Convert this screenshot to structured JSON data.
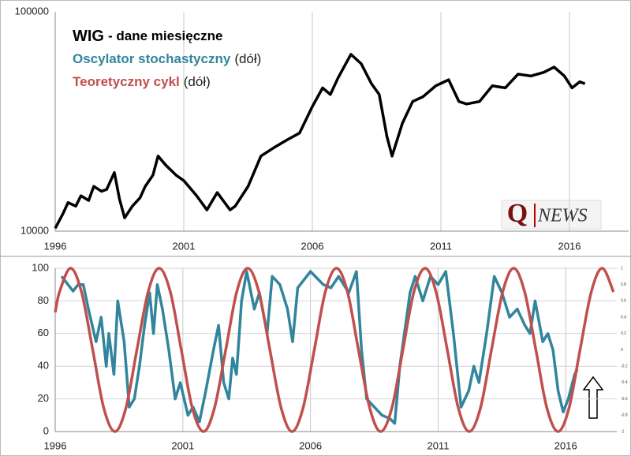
{
  "chart_data": [
    {
      "type": "line",
      "log_y": true,
      "grid_x": true,
      "grid_y": false,
      "xlim": [
        1996,
        2018.3
      ],
      "xticks": [
        1996,
        2001,
        2006,
        2011,
        2016
      ],
      "ylim": [
        10000,
        100000
      ],
      "yticks": [
        10000,
        100000
      ],
      "series": [
        {
          "name": "WIG",
          "note": "- dane miesięczne",
          "color": "#000000",
          "x": [
            1996.0,
            1996.3,
            1996.5,
            1996.8,
            1997.0,
            1997.3,
            1997.5,
            1997.8,
            1998.0,
            1998.3,
            1998.5,
            1998.7,
            1999.0,
            1999.3,
            1999.5,
            1999.8,
            2000.0,
            2000.3,
            2000.7,
            2001.0,
            2001.5,
            2001.9,
            2002.3,
            2002.8,
            2003.0,
            2003.5,
            2004.0,
            2004.5,
            2005.0,
            2005.5,
            2006.0,
            2006.4,
            2006.7,
            2007.0,
            2007.5,
            2007.9,
            2008.3,
            2008.6,
            2008.9,
            2009.1,
            2009.5,
            2009.9,
            2010.3,
            2010.8,
            2011.3,
            2011.7,
            2012.0,
            2012.5,
            2013.0,
            2013.5,
            2014.0,
            2014.5,
            2015.0,
            2015.4,
            2015.8,
            2016.1,
            2016.4,
            2016.6
          ],
          "values": [
            10300,
            12000,
            13500,
            13000,
            14500,
            13800,
            16000,
            15200,
            15500,
            18500,
            14000,
            11500,
            13000,
            14200,
            16000,
            18000,
            22000,
            20000,
            18000,
            17000,
            14500,
            12500,
            15000,
            12500,
            13000,
            16000,
            22000,
            24000,
            26000,
            28000,
            37000,
            45000,
            42000,
            50000,
            64000,
            58000,
            47000,
            42000,
            27000,
            22000,
            31000,
            39000,
            41000,
            46000,
            49000,
            39000,
            38000,
            39000,
            46000,
            45000,
            52000,
            51000,
            53000,
            56000,
            51000,
            45000,
            48000,
            47000
          ]
        }
      ],
      "legend_extra": [
        {
          "name": "Oscylator stochastyczny",
          "note": "(dół)",
          "color": "#31859c"
        },
        {
          "name": "Teoretyczny cykl",
          "note": "(dół)",
          "color": "#c0504d"
        }
      ],
      "logo": {
        "mark": "Q",
        "text": "NEWS"
      }
    },
    {
      "type": "line",
      "log_y": false,
      "grid_x": true,
      "grid_y": true,
      "xlim": [
        1996,
        2018
      ],
      "xticks": [
        1996,
        2001,
        2006,
        2011,
        2016
      ],
      "ylim": [
        0,
        100
      ],
      "yticks": [
        0,
        20,
        40,
        60,
        80,
        100
      ],
      "y2lim": [
        -1,
        1
      ],
      "y2ticks": [
        -1,
        -0.8,
        -0.6,
        -0.4,
        -0.2,
        0,
        0.2,
        0.4,
        0.6,
        0.8,
        1
      ],
      "series": [
        {
          "color": "#31859c",
          "x": [
            1996.25,
            1996.5,
            1996.7,
            1996.9,
            1997.1,
            1997.3,
            1997.6,
            1997.8,
            1998.0,
            1998.1,
            1998.3,
            1998.45,
            1998.7,
            1998.9,
            1999.1,
            1999.3,
            1999.5,
            1999.7,
            1999.85,
            2000.0,
            2000.2,
            2000.45,
            2000.7,
            2000.9,
            2001.2,
            2001.4,
            2001.65,
            2001.9,
            2002.2,
            2002.4,
            2002.6,
            2002.8,
            2002.95,
            2003.1,
            2003.3,
            2003.5,
            2003.8,
            2004.0,
            2004.3,
            2004.5,
            2004.8,
            2005.1,
            2005.3,
            2005.5,
            2006.0,
            2006.5,
            2006.8,
            2007.1,
            2007.5,
            2007.8,
            2008.0,
            2008.2,
            2008.5,
            2008.8,
            2009.1,
            2009.3,
            2009.5,
            2009.9,
            2010.1,
            2010.4,
            2010.7,
            2011.0,
            2011.3,
            2011.6,
            2011.9,
            2012.2,
            2012.4,
            2012.6,
            2012.9,
            2013.2,
            2013.5,
            2013.8,
            2014.1,
            2014.4,
            2014.6,
            2014.8,
            2015.1,
            2015.3,
            2015.5,
            2015.7,
            2015.9,
            2016.1,
            2016.35,
            2016.45
          ],
          "values": [
            95,
            90,
            86,
            90,
            90,
            75,
            55,
            70,
            40,
            60,
            35,
            80,
            55,
            15,
            20,
            40,
            65,
            85,
            60,
            90,
            75,
            50,
            20,
            30,
            10,
            15,
            6,
            25,
            50,
            65,
            30,
            20,
            45,
            35,
            80,
            98,
            75,
            85,
            60,
            95,
            90,
            75,
            55,
            88,
            98,
            90,
            88,
            95,
            85,
            98,
            50,
            20,
            15,
            10,
            8,
            5,
            40,
            85,
            95,
            80,
            95,
            90,
            98,
            60,
            15,
            25,
            40,
            30,
            60,
            95,
            85,
            70,
            75,
            65,
            60,
            80,
            55,
            60,
            50,
            25,
            12,
            20,
            35,
            38
          ]
        },
        {
          "color": "#c0504d",
          "axis": "y2",
          "smooth": true,
          "x": [
            1996.0,
            1996.17,
            1996.6,
            1997.03,
            1997.47,
            1997.9,
            1998.34,
            1998.77,
            1999.2,
            1999.64,
            2000.07,
            2000.51,
            2000.94,
            2001.37,
            2001.81,
            2002.24,
            2002.68,
            2003.11,
            2003.54,
            2003.98,
            2004.41,
            2004.85,
            2005.28,
            2005.71,
            2006.15,
            2006.58,
            2007.02,
            2007.45,
            2007.88,
            2008.32,
            2008.75,
            2009.19,
            2009.62,
            2010.05,
            2010.49,
            2010.92,
            2011.36,
            2011.79,
            2012.22,
            2012.66,
            2013.09,
            2013.53,
            2013.96,
            2014.39,
            2014.83,
            2015.26,
            2015.7,
            2016.13,
            2016.56,
            2017.0,
            2017.43,
            2017.87
          ],
          "values": [
            0.46,
            0.71,
            1,
            0.71,
            0,
            -0.71,
            -1,
            -0.71,
            0,
            0.71,
            1,
            0.71,
            0,
            -0.71,
            -1,
            -0.71,
            0,
            0.71,
            1,
            0.71,
            0,
            -0.71,
            -1,
            -0.71,
            0,
            0.71,
            1,
            0.71,
            0,
            -0.71,
            -1,
            -0.71,
            0,
            0.71,
            1,
            0.71,
            0,
            -0.71,
            -1,
            -0.71,
            0,
            0.71,
            1,
            0.71,
            0,
            -0.71,
            -1,
            -0.71,
            0,
            0.71,
            1,
            0.71
          ]
        }
      ]
    }
  ]
}
